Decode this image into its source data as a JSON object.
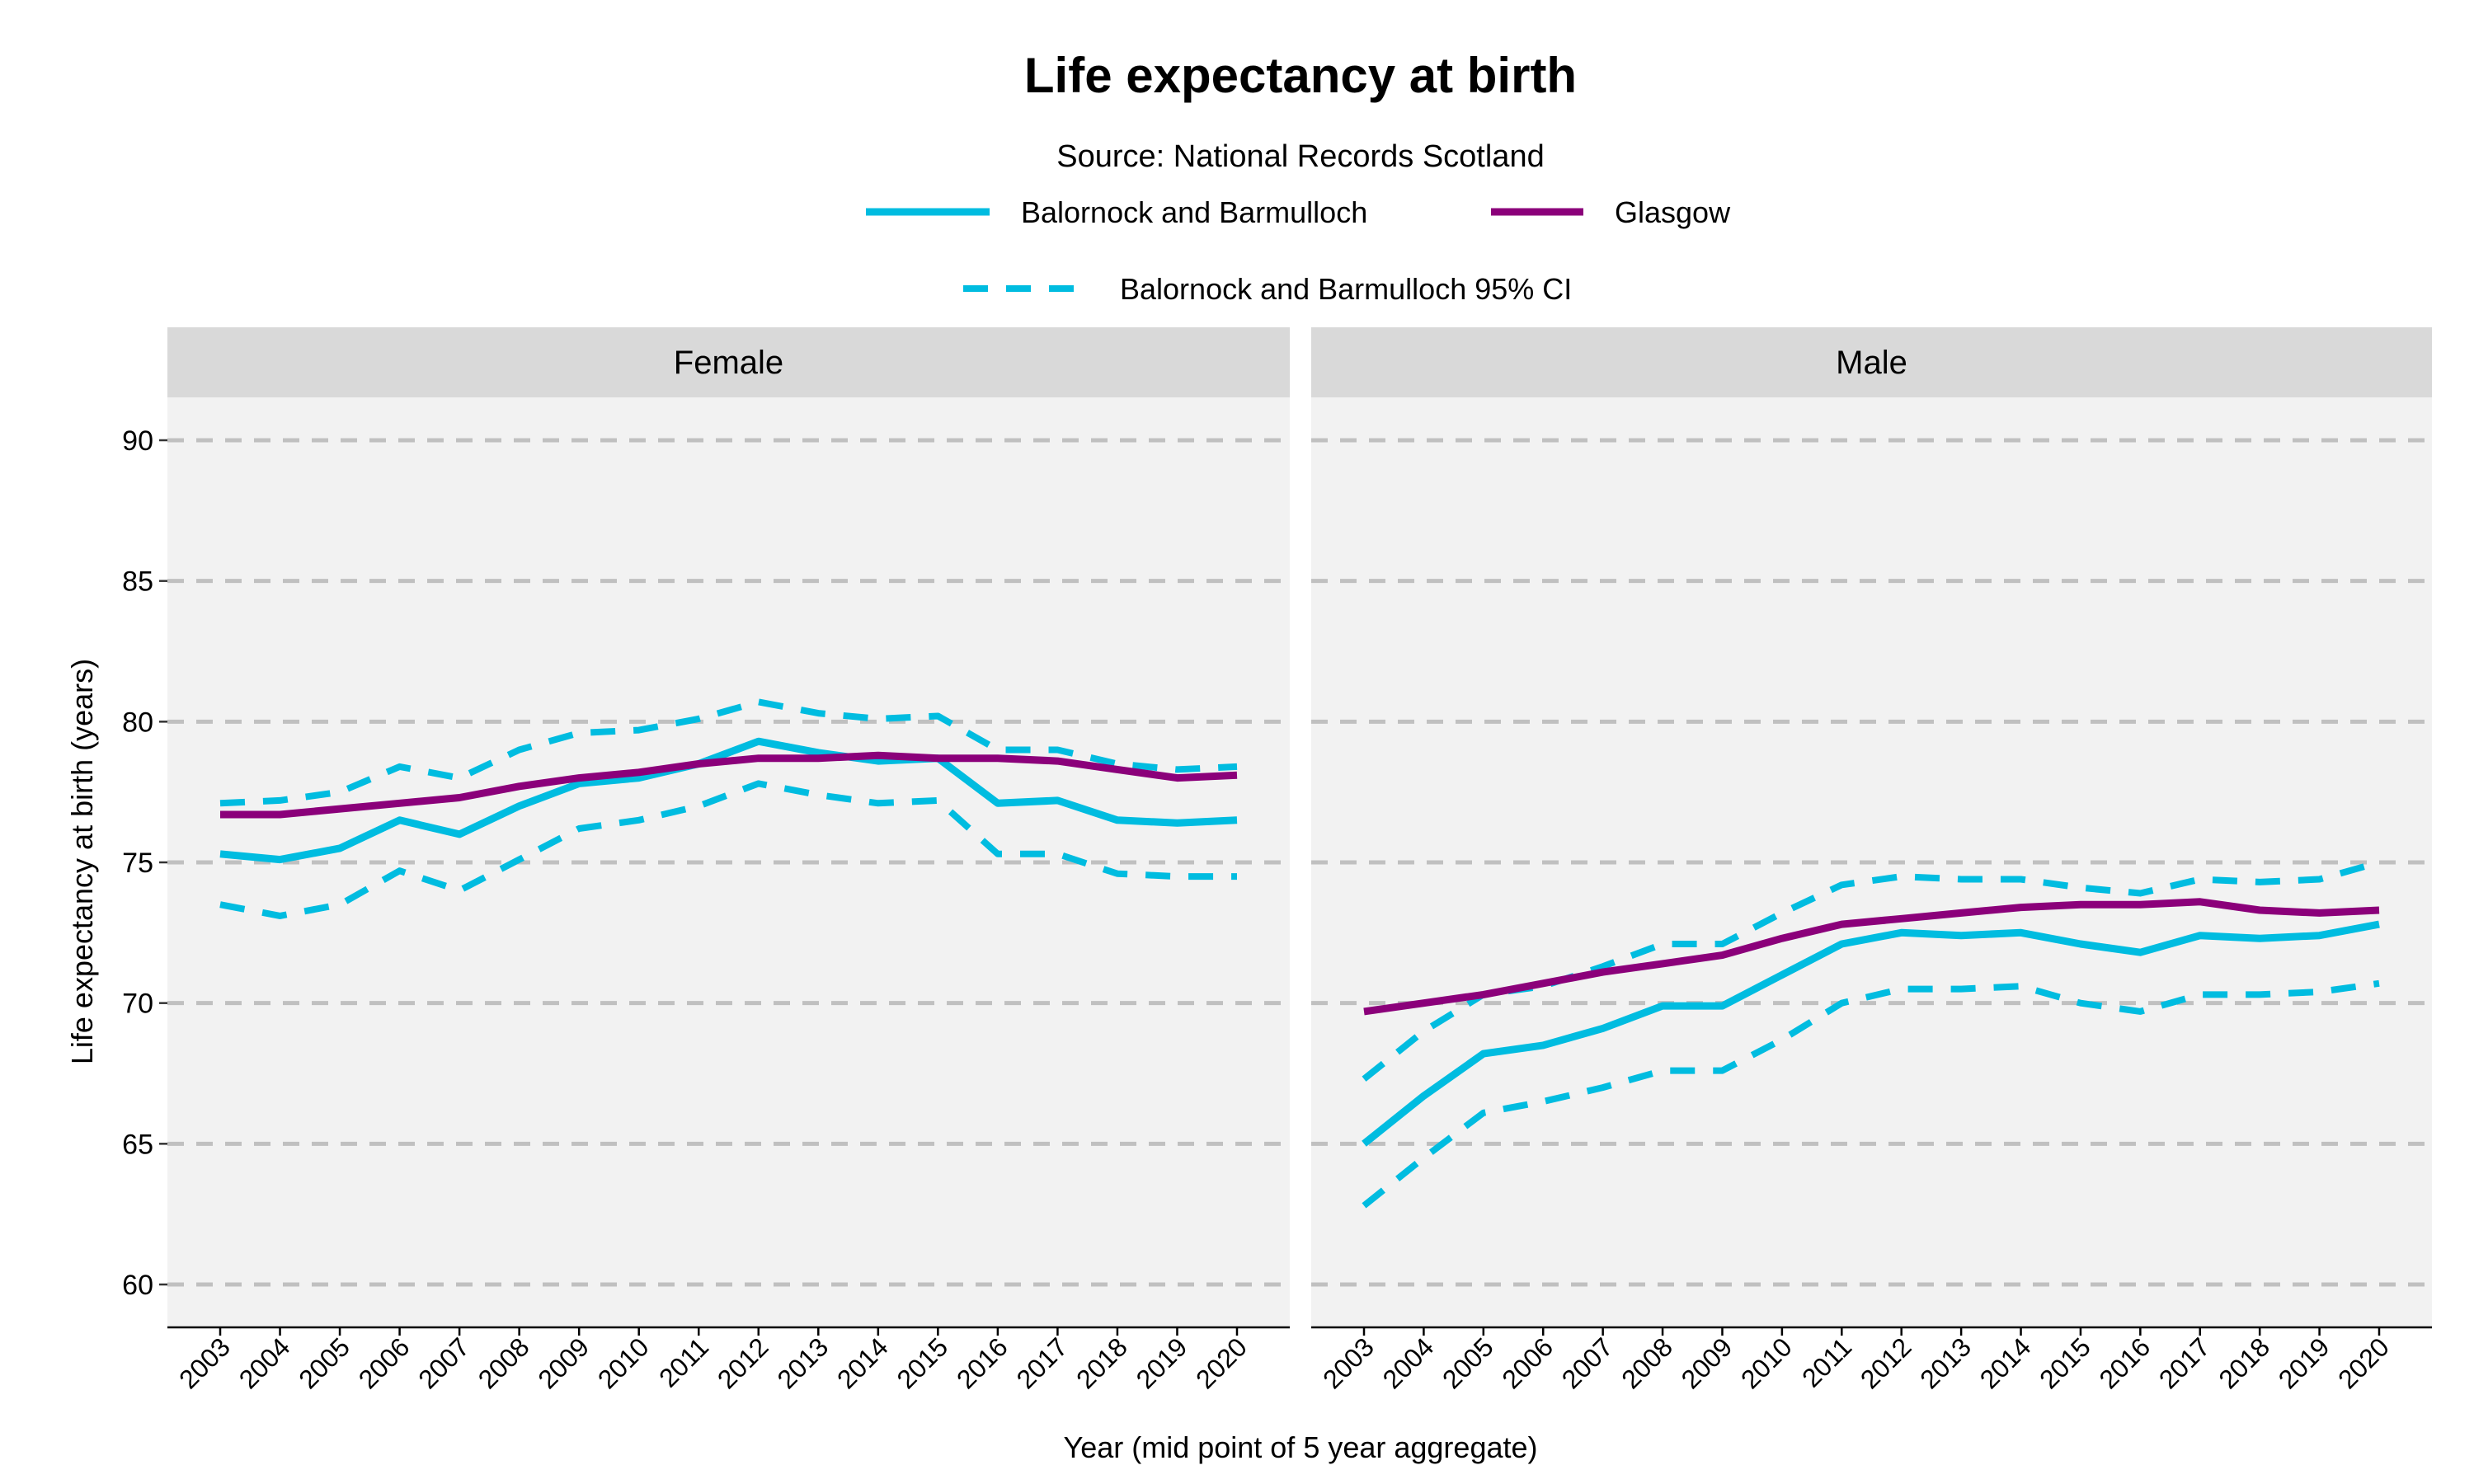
{
  "chart_data": {
    "type": "line",
    "title": "Life expectancy at birth",
    "subtitle": "Source: National Records Scotland",
    "xlabel": "Year (mid point of 5 year aggregate)",
    "ylabel": "Life expectancy at birth (years)",
    "ylim": [
      58.5,
      91.5
    ],
    "yticks": [
      60,
      65,
      70,
      75,
      80,
      85,
      90
    ],
    "grid": "horizontal dashed",
    "legend_position": "top",
    "legend": [
      {
        "label": "Balornock and Barmulloch",
        "color": "#00BCE0",
        "style": "solid"
      },
      {
        "label": "Glasgow",
        "color": "#8B007A",
        "style": "solid"
      },
      {
        "label": "Balornock and Barmulloch 95% CI",
        "color": "#00BCE0",
        "style": "dashed"
      }
    ],
    "x": [
      "2003",
      "2004",
      "2005",
      "2006",
      "2007",
      "2008",
      "2009",
      "2010",
      "2011",
      "2012",
      "2013",
      "2014",
      "2015",
      "2016",
      "2017",
      "2018",
      "2019",
      "2020"
    ],
    "panels": [
      {
        "label": "Female",
        "series": [
          {
            "name": "Balornock and Barmulloch",
            "values": [
              75.3,
              75.1,
              75.5,
              76.5,
              76.0,
              77.0,
              77.8,
              78.0,
              78.5,
              79.3,
              78.9,
              78.6,
              78.7,
              77.1,
              77.2,
              76.5,
              76.4,
              76.5
            ]
          },
          {
            "name": "Glasgow",
            "values": [
              76.7,
              76.7,
              76.9,
              77.1,
              77.3,
              77.7,
              78.0,
              78.2,
              78.5,
              78.7,
              78.7,
              78.8,
              78.7,
              78.7,
              78.6,
              78.3,
              78.0,
              78.1
            ]
          },
          {
            "name": "Balornock and Barmulloch 95% CI",
            "bound": "upper",
            "values": [
              77.1,
              77.2,
              77.5,
              78.4,
              78.0,
              79.0,
              79.6,
              79.7,
              80.1,
              80.7,
              80.3,
              80.1,
              80.2,
              79.0,
              79.0,
              78.5,
              78.3,
              78.4
            ]
          },
          {
            "name": "Balornock and Barmulloch 95% CI",
            "bound": "lower",
            "values": [
              73.5,
              73.1,
              73.5,
              74.7,
              74.0,
              75.1,
              76.2,
              76.5,
              77.0,
              77.8,
              77.4,
              77.1,
              77.2,
              75.3,
              75.3,
              74.6,
              74.5,
              74.5
            ]
          }
        ]
      },
      {
        "label": "Male",
        "series": [
          {
            "name": "Balornock and Barmulloch",
            "values": [
              65.0,
              66.7,
              68.2,
              68.5,
              69.1,
              69.9,
              69.9,
              71.0,
              72.1,
              72.5,
              72.4,
              72.5,
              72.1,
              71.8,
              72.4,
              72.3,
              72.4,
              72.8
            ]
          },
          {
            "name": "Glasgow",
            "values": [
              69.7,
              70.0,
              70.3,
              70.7,
              71.1,
              71.4,
              71.7,
              72.3,
              72.8,
              73.0,
              73.2,
              73.4,
              73.5,
              73.5,
              73.6,
              73.3,
              73.2,
              73.3
            ]
          },
          {
            "name": "Balornock and Barmulloch 95% CI",
            "bound": "upper",
            "values": [
              67.3,
              69.0,
              70.3,
              70.6,
              71.3,
              72.1,
              72.1,
              73.2,
              74.2,
              74.5,
              74.4,
              74.4,
              74.1,
              73.9,
              74.4,
              74.3,
              74.4,
              75.0
            ]
          },
          {
            "name": "Balornock and Barmulloch 95% CI",
            "bound": "lower",
            "values": [
              62.8,
              64.5,
              66.1,
              66.5,
              67.0,
              67.6,
              67.6,
              68.7,
              70.0,
              70.5,
              70.5,
              70.6,
              70.0,
              69.7,
              70.3,
              70.3,
              70.4,
              70.7
            ]
          }
        ]
      }
    ]
  }
}
